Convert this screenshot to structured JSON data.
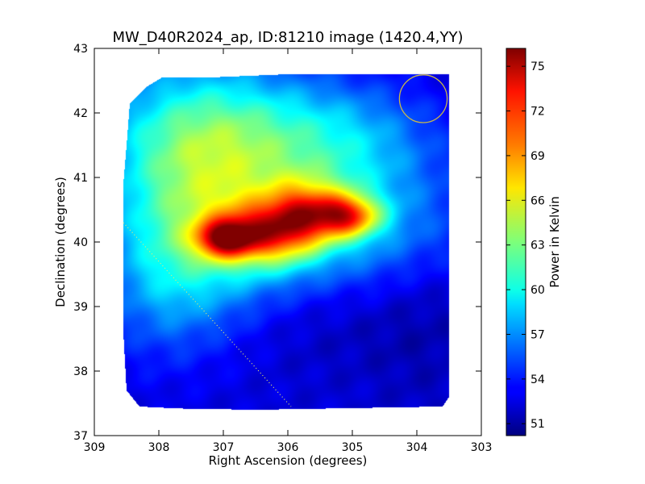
{
  "chart_data": {
    "type": "heatmap",
    "title": "MW_D40R2024_ap, ID:81210 image (1420.4,YY)",
    "xlabel": "Right Ascension (degrees)",
    "ylabel": "Declination (degrees)",
    "colorbar_label": "Power in Kelvin",
    "xlim": [
      309,
      303
    ],
    "ylim": [
      37,
      43
    ],
    "x_ticks": [
      309,
      308,
      307,
      306,
      305,
      304,
      303
    ],
    "y_ticks": [
      37,
      38,
      39,
      40,
      41,
      42,
      43
    ],
    "x_tick_labels": [
      "309",
      "308",
      "307",
      "306",
      "305",
      "304",
      "303"
    ],
    "y_tick_labels": [
      "37",
      "38",
      "39",
      "40",
      "41",
      "42",
      "43"
    ],
    "colorbar_range": [
      50.2,
      76.2
    ],
    "colorbar_ticks": [
      51,
      54,
      57,
      60,
      63,
      66,
      69,
      72,
      75
    ],
    "colorbar_tick_labels": [
      "51",
      "54",
      "57",
      "60",
      "63",
      "66",
      "69",
      "72",
      "75"
    ],
    "colormap": "jet",
    "background_level": 52.5,
    "footprint_outline": [
      [
        308.45,
        42.15
      ],
      [
        308.2,
        42.4
      ],
      [
        307.95,
        42.55
      ],
      [
        307.2,
        42.55
      ],
      [
        306.0,
        42.6
      ],
      [
        303.5,
        42.6
      ],
      [
        303.5,
        37.6
      ],
      [
        303.6,
        37.45
      ],
      [
        306.5,
        37.4
      ],
      [
        307.7,
        37.42
      ],
      [
        308.3,
        37.45
      ],
      [
        308.5,
        37.7
      ],
      [
        308.55,
        38.6
      ],
      [
        308.55,
        40.9
      ],
      [
        308.5,
        41.5
      ]
    ],
    "emission_components": [
      {
        "ra": 305.05,
        "dec": 40.4,
        "amp": 10.5,
        "sx": 0.35,
        "sy": 0.22
      },
      {
        "ra": 305.55,
        "dec": 40.45,
        "amp": 7.5,
        "sx": 0.45,
        "sy": 0.35
      },
      {
        "ra": 305.9,
        "dec": 40.3,
        "amp": 5.5,
        "sx": 0.35,
        "sy": 0.4
      },
      {
        "ra": 306.4,
        "dec": 40.15,
        "amp": 6.0,
        "sx": 0.45,
        "sy": 0.35
      },
      {
        "ra": 307.0,
        "dec": 40.05,
        "amp": 10.5,
        "sx": 0.3,
        "sy": 0.2
      },
      {
        "ra": 306.6,
        "dec": 40.1,
        "amp": 4.5,
        "sx": 0.5,
        "sy": 0.3
      },
      {
        "ra": 305.2,
        "dec": 40.3,
        "amp": 6.0,
        "sx": 1.4,
        "sy": 0.75
      },
      {
        "ra": 307.0,
        "dec": 40.2,
        "amp": 3.0,
        "sx": 0.8,
        "sy": 0.9
      },
      {
        "ra": 307.6,
        "dec": 41.0,
        "amp": 6.5,
        "sx": 1.0,
        "sy": 1.3
      },
      {
        "ra": 306.7,
        "dec": 41.7,
        "amp": 5.5,
        "sx": 1.3,
        "sy": 0.7
      },
      {
        "ra": 305.0,
        "dec": 41.6,
        "amp": 3.5,
        "sx": 1.0,
        "sy": 0.6
      },
      {
        "ra": 307.9,
        "dec": 39.3,
        "amp": 3.0,
        "sx": 0.7,
        "sy": 0.8
      },
      {
        "ra": 305.3,
        "dec": 38.8,
        "amp": -1.0,
        "sx": 1.5,
        "sy": 0.6
      },
      {
        "ra": 303.9,
        "dec": 39.0,
        "amp": -0.8,
        "sx": 0.6,
        "sy": 1.5
      }
    ],
    "beam_circle": {
      "ra": 303.9,
      "dec": 42.22,
      "radius_deg": 0.37,
      "color": "#c9b84a"
    },
    "track_line": {
      "from": [
        308.55,
        40.3
      ],
      "to": [
        305.95,
        37.45
      ],
      "color": "#e8e870",
      "style": "dotted"
    }
  }
}
